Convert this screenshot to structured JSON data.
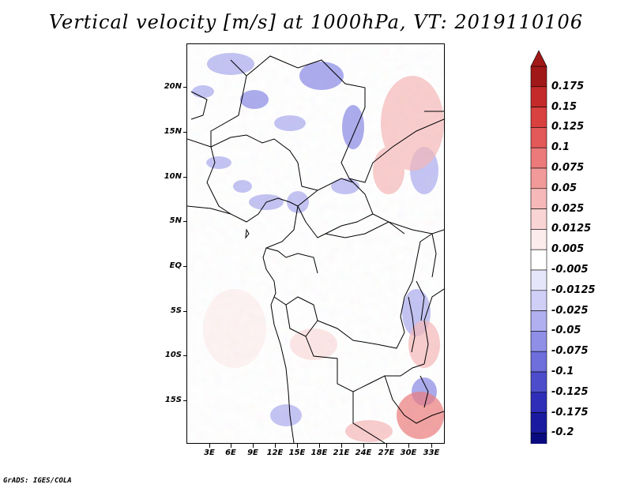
{
  "title": "Vertical velocity [m/s] at 1000hPa, VT: 2019110106",
  "credit": "GrADS: IGES/COLA",
  "map": {
    "lat_labels": [
      "20N",
      "15N",
      "10N",
      "5N",
      "EQ",
      "5S",
      "10S",
      "15S"
    ],
    "lon_labels": [
      "3E",
      "6E",
      "9E",
      "12E",
      "15E",
      "18E",
      "21E",
      "24E",
      "27E",
      "30E",
      "33E"
    ]
  },
  "colorbar": {
    "labels": [
      "0.175",
      "0.15",
      "0.125",
      "0.1",
      "0.075",
      "0.05",
      "0.025",
      "0.0125",
      "0.005",
      "-0.005",
      "-0.0125",
      "-0.025",
      "-0.05",
      "-0.075",
      "-0.1",
      "-0.125",
      "-0.175",
      "-0.2"
    ],
    "colors": [
      "#a01818",
      "#c42a2a",
      "#d94040",
      "#e35858",
      "#ec7a7a",
      "#f29a9a",
      "#f6b8b8",
      "#f9d4d4",
      "#fcecec",
      "#ffffff",
      "#e6e6fb",
      "#cfcff7",
      "#b0b0f0",
      "#8f8fe8",
      "#6e6edc",
      "#4d4dcc",
      "#2e2eb8",
      "#1a1aa0",
      "#0a0a80"
    ]
  }
}
